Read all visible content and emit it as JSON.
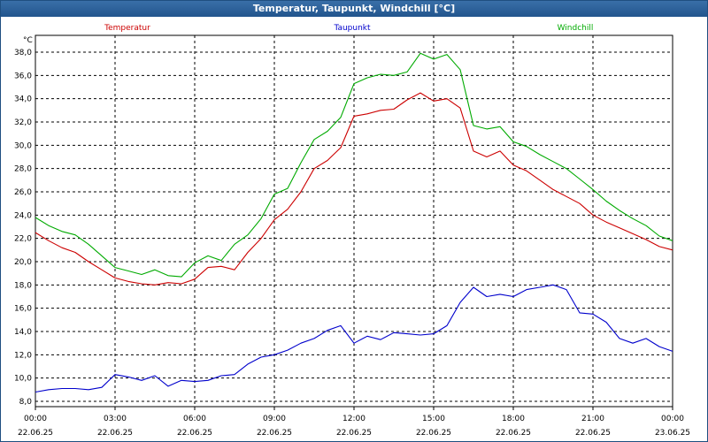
{
  "window": {
    "title": "Temperatur, Taupunkt, Windchill [°C]"
  },
  "colors": {
    "titlebar": "#2a5d96",
    "temperature": "#cc0000",
    "dewpoint": "#0000cc",
    "windchill": "#00aa00"
  },
  "chart_data": {
    "type": "line",
    "title": "Temperatur, Taupunkt, Windchill [°C]",
    "ylabel": "°C",
    "ylim": [
      8.0,
      38.0
    ],
    "yticks": [
      "8,0",
      "10,0",
      "12,0",
      "14,0",
      "16,0",
      "18,0",
      "20,0",
      "22,0",
      "24,0",
      "26,0",
      "28,0",
      "30,0",
      "32,0",
      "34,0",
      "36,0",
      "38,0"
    ],
    "xlim": [
      0,
      24
    ],
    "xticks": [
      {
        "time": "00:00",
        "date": "22.06.25"
      },
      {
        "time": "03:00",
        "date": "22.06.25"
      },
      {
        "time": "06:00",
        "date": "22.06.25"
      },
      {
        "time": "09:00",
        "date": "22.06.25"
      },
      {
        "time": "12:00",
        "date": "22.06.25"
      },
      {
        "time": "15:00",
        "date": "22.06.25"
      },
      {
        "time": "18:00",
        "date": "22.06.25"
      },
      {
        "time": "21:00",
        "date": "22.06.25"
      },
      {
        "time": "00:00",
        "date": "23.06.25"
      }
    ],
    "grid": true,
    "legend_position": "top",
    "x_hours": [
      0,
      0.5,
      1,
      1.5,
      2,
      2.5,
      3,
      3.5,
      4,
      4.5,
      5,
      5.5,
      6,
      6.5,
      7,
      7.5,
      8,
      8.5,
      9,
      9.5,
      10,
      10.5,
      11,
      11.5,
      12,
      12.5,
      13,
      13.5,
      14,
      14.5,
      15,
      15.5,
      16,
      16.5,
      17,
      17.5,
      18,
      18.5,
      19,
      19.5,
      20,
      20.5,
      21,
      21.5,
      22,
      22.5,
      23,
      23.5,
      24
    ],
    "series": [
      {
        "name": "Temperatur",
        "color": "#cc0000",
        "values": [
          22.5,
          21.8,
          21.2,
          20.8,
          20.0,
          19.3,
          18.6,
          18.3,
          18.1,
          18.0,
          18.2,
          18.1,
          18.5,
          19.5,
          19.6,
          19.3,
          20.8,
          22.0,
          23.6,
          24.5,
          26.0,
          28.0,
          28.7,
          29.8,
          32.5,
          32.7,
          33.0,
          33.1,
          33.9,
          34.5,
          33.8,
          34.0,
          33.2,
          29.5,
          29.0,
          29.5,
          28.3,
          27.8,
          27.0,
          26.2,
          25.6,
          25.0,
          24.0,
          23.4,
          22.9,
          22.4,
          21.9,
          21.3,
          21.0
        ]
      },
      {
        "name": "Taupunkt",
        "color": "#0000cc",
        "values": [
          8.8,
          9.0,
          9.1,
          9.1,
          9.0,
          9.2,
          10.3,
          10.1,
          9.8,
          10.2,
          9.3,
          9.8,
          9.7,
          9.8,
          10.2,
          10.3,
          11.2,
          11.8,
          12.0,
          12.4,
          13.0,
          13.4,
          14.1,
          14.5,
          13.0,
          13.6,
          13.3,
          13.9,
          13.8,
          13.7,
          13.8,
          14.5,
          16.5,
          17.8,
          17.0,
          17.2,
          17.0,
          17.6,
          17.8,
          18.0,
          17.6,
          15.6,
          15.5,
          14.8,
          13.4,
          13.0,
          13.4,
          12.7,
          12.3
        ]
      },
      {
        "name": "Windchill",
        "color": "#00aa00",
        "values": [
          23.8,
          23.1,
          22.6,
          22.3,
          21.5,
          20.5,
          19.5,
          19.2,
          18.9,
          19.3,
          18.8,
          18.7,
          19.9,
          20.5,
          20.1,
          21.5,
          22.3,
          23.7,
          25.8,
          26.3,
          28.5,
          30.5,
          31.2,
          32.4,
          35.3,
          35.8,
          36.1,
          36.0,
          36.3,
          37.9,
          37.4,
          37.8,
          36.5,
          31.7,
          31.4,
          31.6,
          30.3,
          29.9,
          29.2,
          28.6,
          28.0,
          27.1,
          26.2,
          25.2,
          24.4,
          23.7,
          23.1,
          22.2,
          21.8
        ]
      }
    ]
  }
}
